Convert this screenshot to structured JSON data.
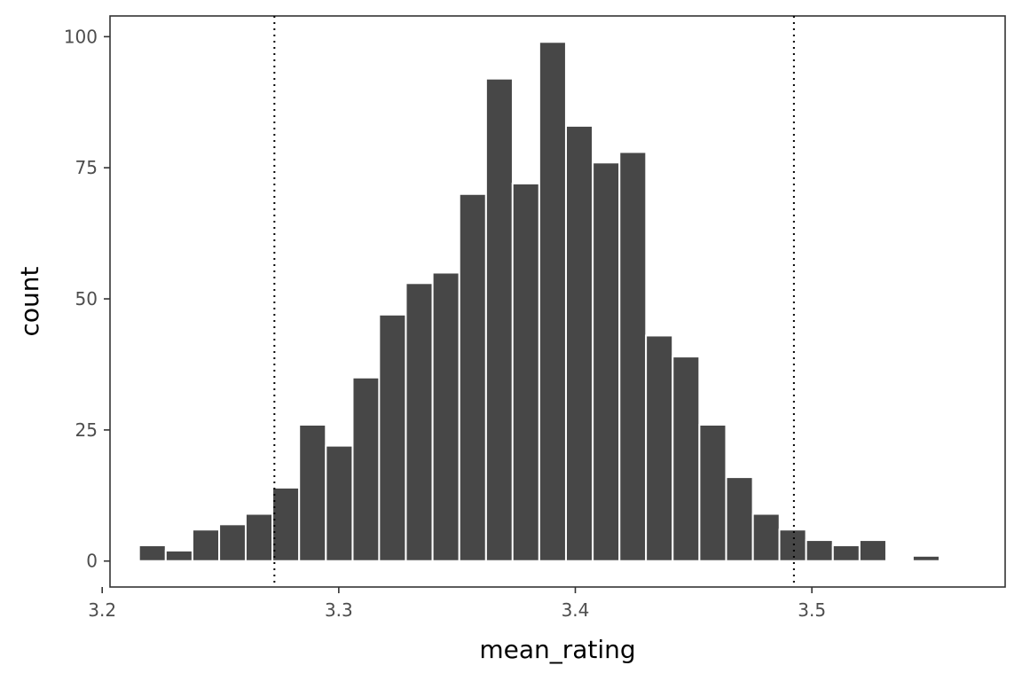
{
  "chart_data": {
    "type": "bar",
    "xlabel": "mean_rating",
    "ylabel": "count",
    "xlim": [
      3.2033,
      3.5817
    ],
    "ylim": [
      -4.95,
      103.95
    ],
    "x_ticks": [
      3.2,
      3.3,
      3.4,
      3.5
    ],
    "x_tick_labels": [
      "3.2",
      "3.3",
      "3.4",
      "3.5"
    ],
    "y_ticks": [
      0,
      25,
      50,
      75,
      100
    ],
    "y_tick_labels": [
      "0",
      "25",
      "50",
      "75",
      "100"
    ],
    "bin_width": 0.01128,
    "bin_centers": [
      3.2212,
      3.2325,
      3.2438,
      3.2551,
      3.2663,
      3.2776,
      3.2889,
      3.3002,
      3.3115,
      3.3227,
      3.334,
      3.3453,
      3.3566,
      3.3679,
      3.3791,
      3.3904,
      3.4017,
      3.413,
      3.4243,
      3.4355,
      3.4468,
      3.4581,
      3.4694,
      3.4807,
      3.4919,
      3.5032,
      3.5145,
      3.5258,
      3.5371,
      3.5483,
      3.5596
    ],
    "counts": [
      3,
      2,
      6,
      7,
      9,
      14,
      26,
      22,
      35,
      47,
      53,
      55,
      70,
      92,
      72,
      99,
      83,
      76,
      78,
      43,
      39,
      26,
      16,
      9,
      6,
      4,
      3,
      4,
      0,
      1,
      0
    ],
    "reference_lines": [
      3.2728,
      3.4924
    ],
    "colors": {
      "bar_fill": "#474747",
      "bar_outline": "#ffffff",
      "ref_line": "#000000",
      "panel_border": "#333333"
    },
    "grid": false,
    "legend": "none"
  }
}
